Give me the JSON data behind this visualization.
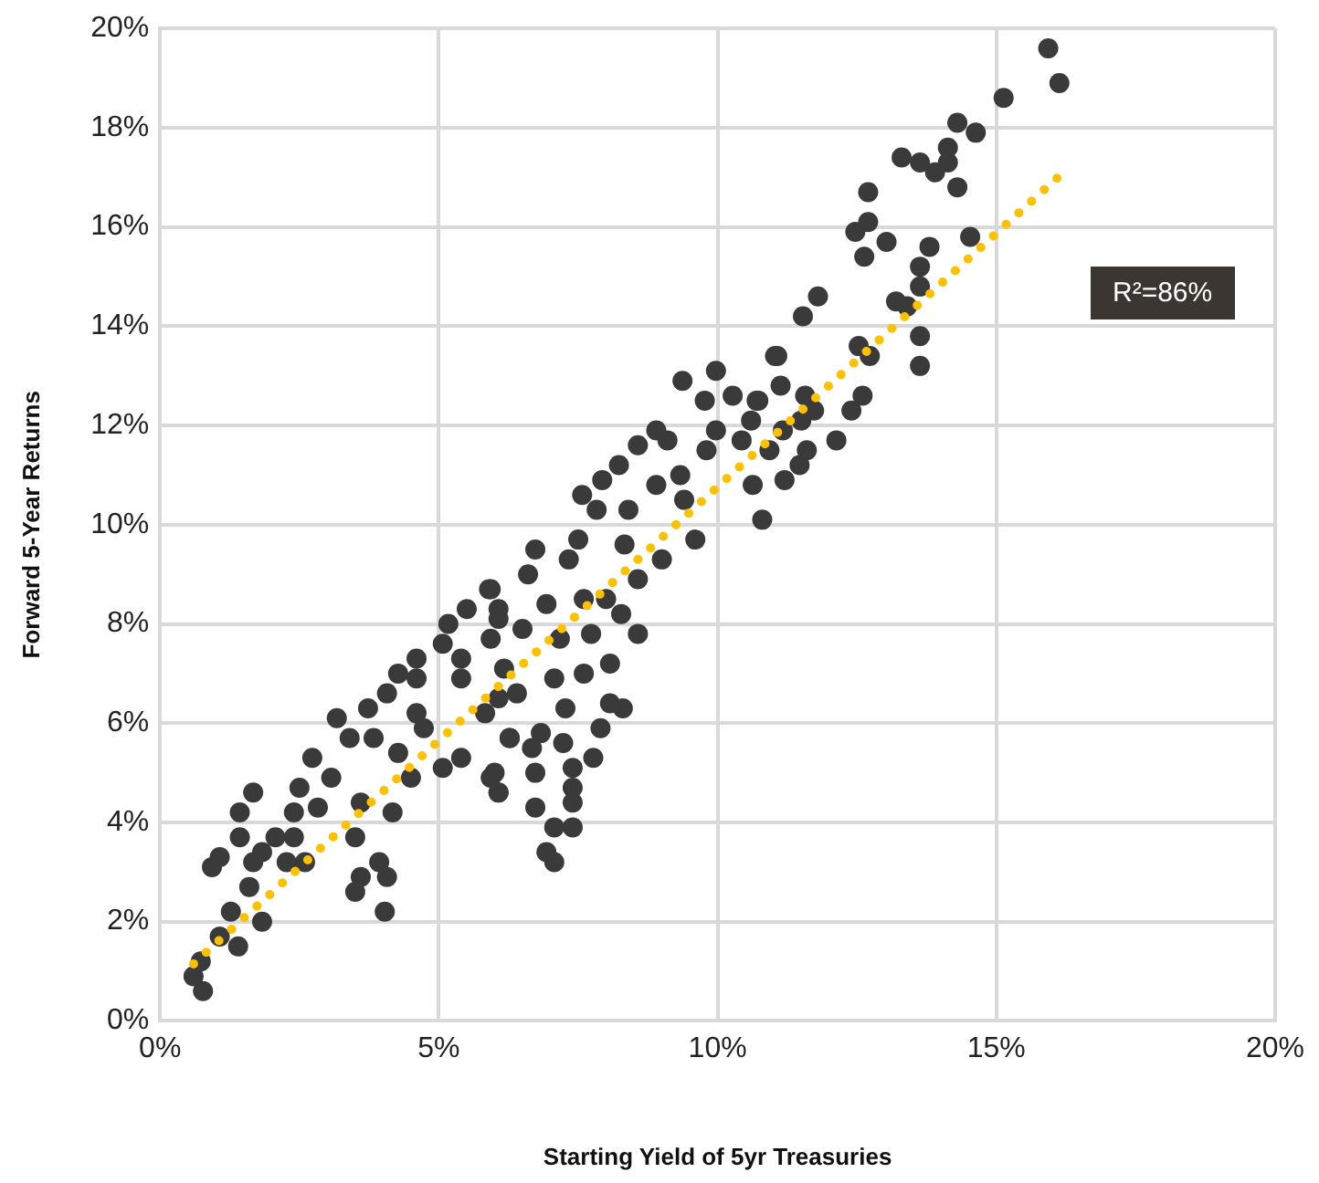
{
  "chart_data": {
    "type": "scatter",
    "xlabel": "Starting Yield of 5yr Treasuries",
    "ylabel": "Forward 5-Year Returns",
    "xlim": [
      0,
      20
    ],
    "ylim": [
      0,
      20
    ],
    "xticks": [
      {
        "value": 0,
        "label": "0%"
      },
      {
        "value": 5,
        "label": "5%"
      },
      {
        "value": 10,
        "label": "10%"
      },
      {
        "value": 15,
        "label": "15%"
      },
      {
        "value": 20,
        "label": "20%"
      }
    ],
    "yticks": [
      {
        "value": 0,
        "label": "0%"
      },
      {
        "value": 2,
        "label": "2%"
      },
      {
        "value": 4,
        "label": "4%"
      },
      {
        "value": 6,
        "label": "6%"
      },
      {
        "value": 8,
        "label": "8%"
      },
      {
        "value": 10,
        "label": "10%"
      },
      {
        "value": 12,
        "label": "12%"
      },
      {
        "value": 14,
        "label": "14%"
      },
      {
        "value": 16,
        "label": "16%"
      },
      {
        "value": 18,
        "label": "18%"
      },
      {
        "value": 20,
        "label": "20%"
      }
    ],
    "grid": true,
    "marker": "circle",
    "annotations": [
      "R²=86%"
    ],
    "series": [
      {
        "color": "#3a3a3a",
        "x": [
          15.93,
          16.13,
          15.13,
          14.3,
          14.63,
          13.3,
          13.63,
          14.13,
          14.13,
          13.9,
          14.3,
          12.7,
          12.7,
          12.47,
          13.03,
          12.63,
          13.8,
          14.53,
          13.63,
          13.63,
          13.2,
          13.4,
          11.8,
          11.53,
          13.63,
          13.63,
          12.53,
          12.73,
          11.03,
          11.13,
          11.57,
          12.6,
          12.4,
          12.13,
          10.7,
          10.6,
          11.17,
          11.5,
          10.93,
          11.6,
          11.47,
          11.2,
          10.63,
          10.8,
          11.73,
          9.37,
          9.97,
          9.77,
          10.27,
          10.73,
          11.07,
          9.97,
          9.8,
          10.43,
          8.9,
          8.57,
          8.23,
          7.93,
          7.57,
          9.1,
          8.9,
          9.33,
          9.4,
          8.4,
          7.83,
          9.6,
          9.0,
          7.5,
          6.73,
          7.33,
          8.33,
          8.57,
          8.0,
          8.27,
          8.57,
          7.6,
          6.93,
          6.6,
          5.93,
          6.07,
          6.5,
          7.17,
          7.73,
          8.07,
          7.6,
          7.07,
          6.4,
          7.27,
          8.07,
          8.3,
          7.9,
          7.23,
          6.83,
          6.27,
          6.67,
          6.0,
          6.07,
          6.73,
          7.4,
          7.77,
          7.4,
          7.4,
          6.73,
          7.07,
          7.4,
          6.93,
          7.07,
          5.83,
          6.17,
          5.9,
          5.5,
          6.07,
          5.17,
          4.6,
          5.07,
          4.27,
          4.07,
          3.73,
          3.17,
          3.4,
          2.73,
          2.5,
          2.83,
          3.07,
          1.67,
          1.43,
          1.43,
          1.07,
          0.93,
          1.67,
          1.83,
          2.4,
          2.27,
          1.6,
          1.27,
          1.07,
          0.73,
          0.6,
          0.77,
          1.4,
          1.83,
          4.6,
          4.73,
          5.07,
          4.5,
          5.4,
          5.93,
          6.07,
          4.27,
          3.6,
          4.17,
          3.5,
          3.93,
          3.6,
          4.07,
          3.5,
          4.03,
          2.6,
          2.4,
          6.27,
          5.4,
          6.07,
          4.6,
          3.83,
          2.07,
          5.93,
          5.4
        ],
        "values": [
          19.6,
          18.9,
          18.6,
          18.1,
          17.9,
          17.4,
          17.3,
          17.6,
          17.3,
          17.1,
          16.8,
          16.7,
          16.1,
          15.9,
          15.7,
          15.4,
          15.6,
          15.8,
          15.2,
          14.8,
          14.5,
          14.4,
          14.6,
          14.2,
          13.8,
          13.2,
          13.6,
          13.4,
          13.4,
          12.8,
          12.6,
          12.6,
          12.3,
          11.7,
          12.5,
          12.1,
          11.9,
          12.1,
          11.5,
          11.5,
          11.2,
          10.9,
          10.8,
          10.1,
          12.3,
          12.9,
          13.1,
          12.5,
          12.6,
          12.5,
          13.4,
          11.9,
          11.5,
          11.7,
          11.9,
          11.6,
          11.2,
          10.9,
          10.6,
          11.7,
          10.8,
          11.0,
          10.5,
          10.3,
          10.3,
          9.7,
          9.3,
          9.7,
          9.5,
          9.3,
          9.6,
          8.9,
          8.5,
          8.2,
          7.8,
          8.5,
          8.4,
          9.0,
          8.7,
          8.1,
          7.9,
          7.7,
          7.8,
          7.2,
          7.0,
          6.9,
          6.6,
          6.3,
          6.4,
          6.3,
          5.9,
          5.6,
          5.8,
          5.7,
          5.5,
          5.0,
          4.6,
          5.0,
          5.1,
          5.3,
          4.7,
          4.4,
          4.3,
          3.9,
          3.9,
          3.4,
          3.2,
          6.2,
          7.1,
          8.7,
          8.3,
          8.3,
          8.0,
          7.3,
          7.6,
          7.0,
          6.6,
          6.3,
          6.1,
          5.7,
          5.3,
          4.7,
          4.3,
          4.9,
          4.6,
          4.2,
          3.7,
          3.3,
          3.1,
          3.2,
          3.4,
          3.7,
          3.2,
          2.7,
          2.2,
          1.7,
          1.2,
          0.9,
          0.6,
          1.5,
          2.0,
          6.9,
          5.9,
          5.1,
          4.9,
          5.3,
          4.9,
          4.6,
          5.4,
          4.4,
          4.2,
          3.7,
          3.2,
          2.9,
          2.9,
          2.6,
          2.2,
          3.2,
          4.2,
          5.7,
          6.9,
          6.5,
          6.2,
          5.7,
          3.7,
          7.7,
          7.3
        ]
      },
      {
        "type": "line",
        "color": "#ffc000",
        "line_style": "dotted",
        "marker": "none",
        "x": [
          0.6,
          16.2
        ],
        "values": [
          1.15,
          17.1
        ]
      }
    ]
  }
}
